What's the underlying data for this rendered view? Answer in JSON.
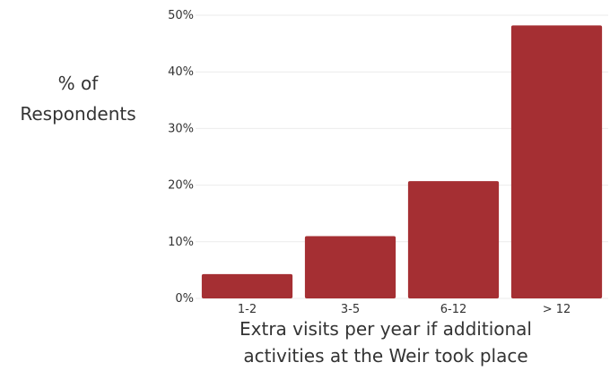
{
  "chart_data": {
    "type": "bar",
    "categories": [
      "1-2",
      "3-5",
      "6-12",
      "> 12"
    ],
    "values": [
      4.3,
      11.0,
      20.7,
      48.2
    ],
    "ylim": [
      0,
      50
    ],
    "yticks": [
      0,
      10,
      20,
      30,
      40,
      50
    ],
    "ytick_labels": [
      "0%",
      "10%",
      "20%",
      "30%",
      "40%",
      "50%"
    ],
    "ylabel_line1": "% of",
    "ylabel_line2": "Respondents",
    "xlabel_line1": "Extra visits per year if additional",
    "xlabel_line2": "activities at the Weir took place",
    "grid": "horizontal",
    "legend": "none",
    "bar_color": "#a52f33",
    "grid_color": "#ebebeb"
  }
}
